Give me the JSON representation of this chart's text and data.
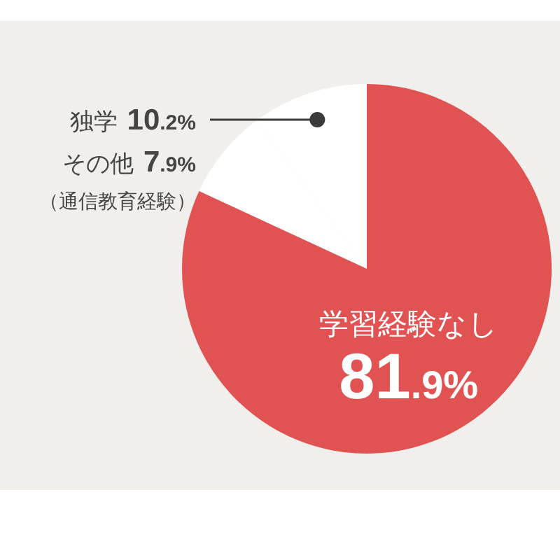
{
  "chart_data": {
    "type": "pie",
    "categories": [
      "独学",
      "その他（通信教育経験）",
      "学習経験なし"
    ],
    "values": [
      10.2,
      7.9,
      81.9
    ],
    "colors": [
      "#ffffff",
      "#ffffff",
      "#e15353"
    ],
    "value_labels": [
      "10.2%",
      "7.9%",
      "81.9%"
    ]
  }
}
